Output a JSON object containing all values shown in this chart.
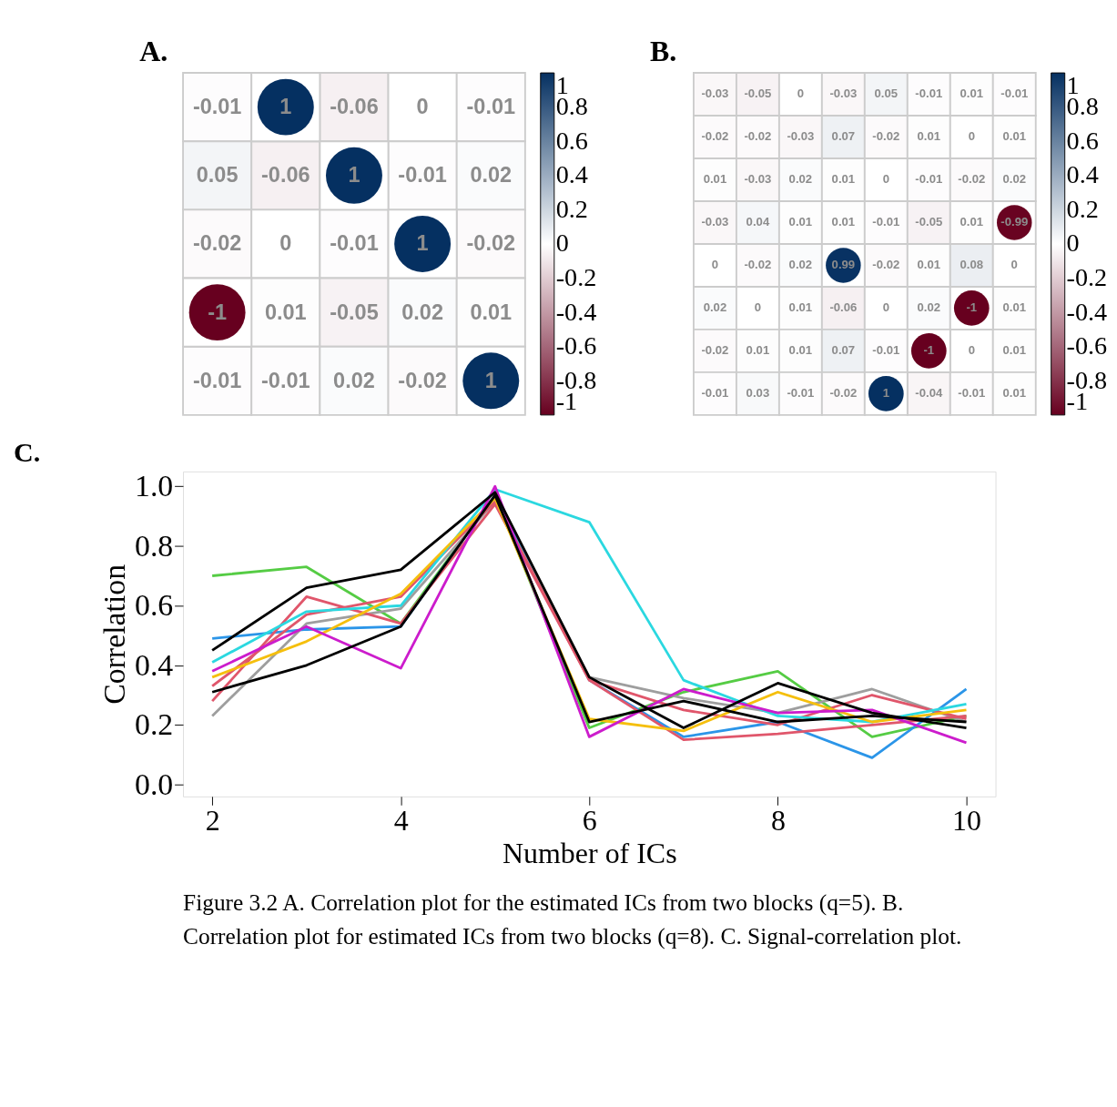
{
  "chart_data": [
    {
      "type": "heatmap",
      "title": "A.",
      "categories": [
        null,
        null,
        null,
        null,
        null
      ],
      "y_categories": [
        null,
        null,
        null,
        null,
        null
      ],
      "cells": [
        [
          -0.01,
          1,
          -0.06,
          0,
          -0.01
        ],
        [
          0.05,
          -0.06,
          1,
          -0.01,
          0.02
        ],
        [
          -0.02,
          0,
          -0.01,
          1,
          -0.02
        ],
        [
          -1,
          0.01,
          -0.05,
          0.02,
          0.01
        ],
        [
          -0.01,
          -0.01,
          0.02,
          -0.02,
          1
        ]
      ],
      "data_labels": true,
      "clim": [
        -1,
        1
      ],
      "cticks": [
        1,
        0.8,
        0.6,
        0.4,
        0.2,
        0,
        -0.2,
        -0.4,
        -0.6,
        -0.8,
        -1
      ]
    },
    {
      "type": "heatmap",
      "title": "B.",
      "categories": [
        null,
        null,
        null,
        null,
        null,
        null,
        null,
        null
      ],
      "y_categories": [
        null,
        null,
        null,
        null,
        null,
        null,
        null,
        null
      ],
      "cells": [
        [
          -0.03,
          -0.05,
          0,
          -0.03,
          0.05,
          -0.01,
          0.01,
          -0.01
        ],
        [
          -0.02,
          -0.02,
          -0.03,
          0.07,
          -0.02,
          0.01,
          0,
          0.01
        ],
        [
          0.01,
          -0.03,
          0.02,
          0.01,
          0,
          -0.01,
          -0.02,
          0.02
        ],
        [
          -0.03,
          0.04,
          0.01,
          0.01,
          -0.01,
          -0.05,
          0.01,
          -0.99
        ],
        [
          0,
          -0.02,
          0.02,
          0.99,
          -0.02,
          0.01,
          0.08,
          0
        ],
        [
          0.02,
          0,
          0.01,
          -0.06,
          0,
          0.02,
          -1,
          0.01
        ],
        [
          -0.02,
          0.01,
          0.01,
          0.07,
          -0.01,
          -1,
          0,
          0.01
        ],
        [
          -0.01,
          0.03,
          -0.01,
          -0.02,
          1,
          -0.04,
          -0.01,
          0.01
        ]
      ],
      "data_labels": true,
      "clim": [
        -1,
        1
      ],
      "cticks": [
        1,
        0.8,
        0.6,
        0.4,
        0.2,
        0,
        -0.2,
        -0.4,
        -0.6,
        -0.8,
        -1
      ]
    },
    {
      "type": "line",
      "title": "C.",
      "xlabel": "Number of ICs",
      "ylabel": "Correlation",
      "x": [
        2,
        3,
        4,
        5,
        6,
        7,
        8,
        9,
        10
      ],
      "xlim": [
        1.69,
        10.31
      ],
      "ylim": [
        -0.04,
        1.05
      ],
      "xticks": [
        2,
        4,
        6,
        8,
        10
      ],
      "yticks": [
        {
          "value": 0,
          "label": "0.0"
        },
        0.2,
        0.4,
        0.6,
        0.8,
        {
          "value": 1,
          "label": "1.0"
        }
      ],
      "grid": false,
      "marker": "none",
      "line_style": "solid",
      "legend": false,
      "series": [
        {
          "color": "#55cc44",
          "values": [
            0.7,
            0.73,
            0.54,
            0.97,
            0.19,
            0.31,
            0.38,
            0.16,
            0.23
          ]
        },
        {
          "color": "#2b95e8",
          "values": [
            0.49,
            0.52,
            0.53,
            0.97,
            0.35,
            0.16,
            0.21,
            0.09,
            0.32
          ]
        },
        {
          "color": "#9e9e9e",
          "values": [
            0.23,
            0.54,
            0.59,
            0.95,
            0.36,
            0.29,
            0.24,
            0.32,
            0.21
          ]
        },
        {
          "color": "#e0566b",
          "values": [
            0.28,
            0.63,
            0.54,
            0.94,
            0.35,
            0.15,
            0.17,
            0.2,
            0.23
          ]
        },
        {
          "color": "#e0566b",
          "values": [
            0.33,
            0.57,
            0.63,
            0.95,
            0.35,
            0.25,
            0.2,
            0.3,
            0.22
          ]
        },
        {
          "color": "#2bd8e0",
          "values": [
            0.41,
            0.58,
            0.6,
            0.99,
            0.88,
            0.35,
            0.23,
            0.21,
            0.27
          ]
        },
        {
          "color": "#f5bf0d",
          "values": [
            0.36,
            0.48,
            0.64,
            0.96,
            0.22,
            0.18,
            0.31,
            0.21,
            0.25
          ]
        },
        {
          "color": "#cc1ccc",
          "values": [
            0.38,
            0.53,
            0.39,
            1.0,
            0.16,
            0.32,
            0.24,
            0.25,
            0.14
          ]
        },
        {
          "color": "#000000",
          "values": [
            0.31,
            0.4,
            0.53,
            0.97,
            0.21,
            0.28,
            0.21,
            0.23,
            0.21
          ]
        },
        {
          "color": "#000000",
          "values": [
            0.45,
            0.66,
            0.72,
            0.98,
            0.36,
            0.19,
            0.34,
            0.24,
            0.19
          ]
        }
      ],
      "annotations": [
        "Figure 3.2 A. Correlation plot for the estimated ICs from two blocks (q=5). B. Correlation plot for estimated ICs from two blocks (q=8). C. Signal-correlation plot."
      ]
    }
  ]
}
